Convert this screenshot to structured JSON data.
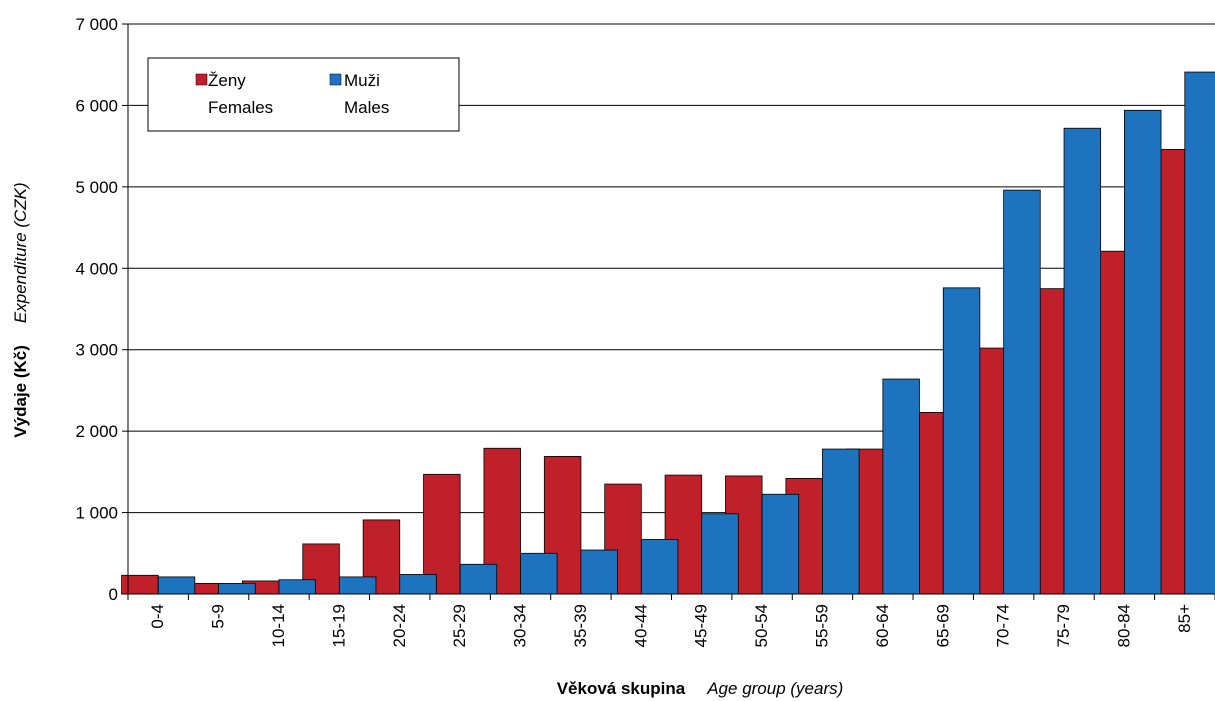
{
  "chart_data": {
    "type": "bar",
    "categories": [
      "0-4",
      "5-9",
      "10-14",
      "15-19",
      "20-24",
      "25-29",
      "30-34",
      "35-39",
      "40-44",
      "45-49",
      "50-54",
      "55-59",
      "60-64",
      "65-69",
      "70-74",
      "75-79",
      "80-84",
      "85+"
    ],
    "series": [
      {
        "name": "Ženy\nFemales",
        "name_cz": "Ženy",
        "name_en": "Females",
        "color": "#C0202A",
        "values": [
          230,
          130,
          160,
          615,
          910,
          1470,
          1790,
          1690,
          1350,
          1460,
          1450,
          1420,
          1780,
          2230,
          3020,
          3750,
          4210,
          5460
        ]
      },
      {
        "name": "Muži\nMales",
        "name_cz": "Muži",
        "name_en": "Males",
        "color": "#1E73BE",
        "values": [
          210,
          130,
          175,
          210,
          240,
          365,
          500,
          540,
          670,
          985,
          1225,
          1780,
          2640,
          3760,
          4960,
          5720,
          5940,
          6410
        ]
      }
    ],
    "ylim": [
      0,
      7000
    ],
    "yticks": [
      "0",
      "1 000",
      "2 000",
      "3 000",
      "4 000",
      "5 000",
      "6 000",
      "7 000"
    ],
    "ylabel_bold": "Výdaje (Kč)",
    "ylabel_italic": "Expenditure (CZK)",
    "xlabel_bold": "Věková skupina",
    "xlabel_italic": "Age group (years)",
    "legend_placement": "top-left",
    "grid": true
  }
}
